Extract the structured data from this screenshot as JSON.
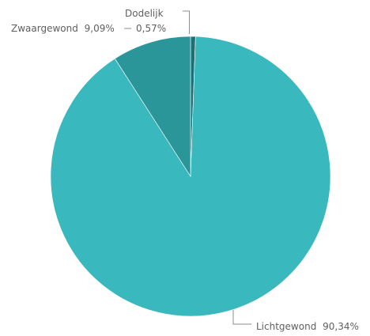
{
  "chart_data": {
    "type": "pie",
    "slices": [
      {
        "category": "Dodelijk",
        "percent_label": "0,57%",
        "value": 0.57,
        "color": "#1f6f74"
      },
      {
        "category": "Lichtgewond",
        "percent_label": "90,34%",
        "value": 90.34,
        "color": "#39b8bd"
      },
      {
        "category": "Zwaargewond",
        "percent_label": "9,09%",
        "value": 9.09,
        "color": "#2a9699"
      }
    ],
    "start": "top",
    "direction": "clockwise",
    "legend": "none"
  }
}
